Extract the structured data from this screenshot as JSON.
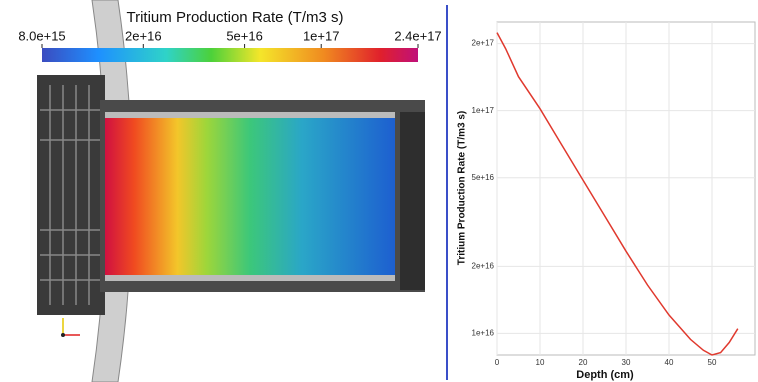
{
  "render": {
    "colorbar": {
      "title": "Tritium Production Rate (T/m3 s)",
      "range": [
        8000000000000000.0,
        2.4e+17
      ],
      "log": true,
      "ticks": [
        {
          "value": 8000000000000000.0,
          "label": "8.0e+15"
        },
        {
          "value": 2e+16,
          "label": "2e+16"
        },
        {
          "value": 5e+16,
          "label": "5e+16"
        },
        {
          "value": 1e+17,
          "label": "1e+17"
        },
        {
          "value": 2.4e+17,
          "label": "2.4e+17"
        }
      ]
    }
  },
  "chart_data": {
    "type": "line",
    "xlabel": "Depth (cm)",
    "ylabel": "Tritium Production Rate (T/m3 s)",
    "x": [
      0,
      2,
      5,
      10,
      15,
      20,
      25,
      30,
      35,
      40,
      45,
      48,
      50,
      52,
      54,
      56
    ],
    "values": [
      2.24e+17,
      1.9e+17,
      1.42e+17,
      1.02e+17,
      7.05e+16,
      4.88e+16,
      3.38e+16,
      2.34e+16,
      1.65e+16,
      1.21e+16,
      9400000000000000.0,
      8400000000000000.0,
      8000000000000000.0,
      8200000000000000.0,
      9100000000000000.0,
      1.05e+16
    ],
    "color": "#e0392e",
    "ylog": true,
    "grid": true,
    "xlim": [
      0,
      60
    ],
    "xticks": [
      0,
      10,
      20,
      30,
      40,
      50
    ],
    "ylim": [
      8000000000000000.0,
      2.5e+17
    ],
    "yticks": [
      {
        "value": 1e+16,
        "label": "1e+16"
      },
      {
        "value": 2e+16,
        "label": "2e+16"
      },
      {
        "value": 5e+16,
        "label": "5e+16"
      },
      {
        "value": 1e+17,
        "label": "1e+17"
      },
      {
        "value": 2e+17,
        "label": "2e+17"
      }
    ]
  }
}
